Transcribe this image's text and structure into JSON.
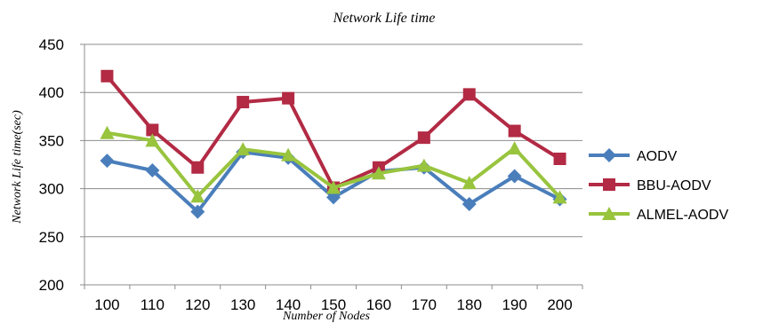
{
  "chart_data": {
    "type": "line",
    "title": "Network Life time",
    "xlabel": "Number of Nodes",
    "ylabel": "Network Life time(sec)",
    "categories": [
      "100",
      "110",
      "120",
      "130",
      "140",
      "150",
      "160",
      "170",
      "180",
      "190",
      "200"
    ],
    "ylim": [
      200,
      450
    ],
    "yticks": [
      200,
      250,
      300,
      350,
      400,
      450
    ],
    "grid": true,
    "legend_position": "right",
    "series": [
      {
        "name": "AODV",
        "color": "#4a7ebb",
        "marker": "diamond",
        "values": [
          329,
          319,
          276,
          338,
          332,
          291,
          318,
          322,
          284,
          313,
          289
        ]
      },
      {
        "name": "BBU-AODV",
        "color": "#b22a44",
        "marker": "square",
        "values": [
          417,
          361,
          322,
          390,
          394,
          301,
          322,
          353,
          398,
          360,
          331
        ]
      },
      {
        "name": "ALMEL-AODV",
        "color": "#98c43e",
        "marker": "triangle",
        "values": [
          358,
          350,
          292,
          341,
          335,
          301,
          316,
          324,
          306,
          342,
          291
        ]
      }
    ]
  }
}
